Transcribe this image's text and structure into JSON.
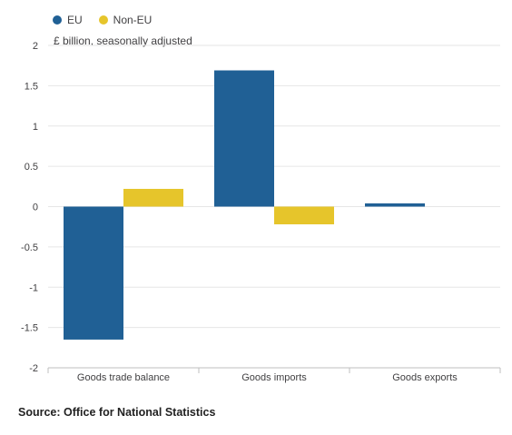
{
  "legend": {
    "items": [
      {
        "label": "EU",
        "color": "#206095"
      },
      {
        "label": "Non-EU",
        "color": "#e6c52b"
      }
    ]
  },
  "unit_label": "£ billion, seasonally adjusted",
  "source": "Source: Office for National Statistics",
  "chart_data": {
    "type": "bar",
    "categories": [
      "Goods trade balance",
      "Goods imports",
      "Goods exports"
    ],
    "series": [
      {
        "name": "EU",
        "color": "#206095",
        "values": [
          -1.65,
          1.69,
          0.04
        ]
      },
      {
        "name": "Non-EU",
        "color": "#e6c52b",
        "values": [
          0.22,
          -0.22,
          0.0
        ]
      }
    ],
    "ylim": [
      -2,
      2
    ],
    "yticks": [
      "2",
      "1.5",
      "1",
      "0.5",
      "0",
      "-0.5",
      "-1",
      "-1.5",
      "-2"
    ],
    "ytick_values": [
      2,
      1.5,
      1,
      0.5,
      0,
      -0.5,
      -1,
      -1.5,
      -2
    ],
    "ylabel": "£ billion, seasonally adjusted",
    "xlabel": "",
    "grid": true,
    "legend_position": "top-left"
  }
}
